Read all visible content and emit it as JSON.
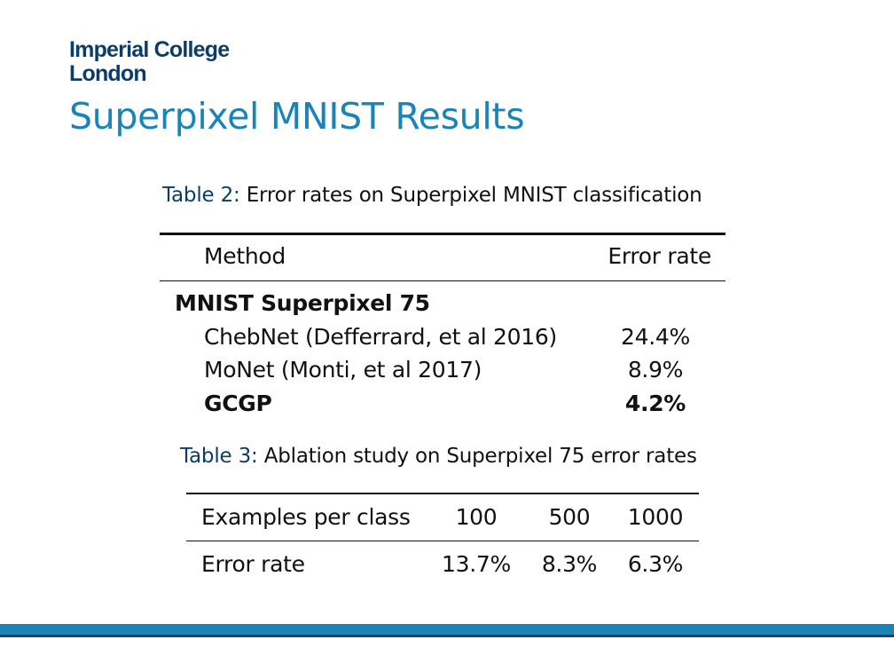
{
  "logo": {
    "line1": "Imperial College",
    "line2": "London"
  },
  "slide_title": "Superpixel MNIST Results",
  "table2": {
    "caption_label": "Table 2:",
    "caption_text": "Error rates on Superpixel MNIST classification",
    "headers": {
      "method": "Method",
      "error": "Error rate"
    },
    "group": "MNIST Superpixel 75",
    "rows": [
      {
        "method": "ChebNet (Defferrard, et al 2016)",
        "error": "24.4%"
      },
      {
        "method": "MoNet (Monti, et al 2017)",
        "error": "8.9%"
      },
      {
        "method": "GCGP",
        "error": "4.2%"
      }
    ]
  },
  "table3": {
    "caption_label": "Table 3:",
    "caption_text": "Ablation study on Superpixel 75 error rates",
    "header": {
      "label": "Examples per class",
      "values": [
        "100",
        "500",
        "1000"
      ]
    },
    "row": {
      "label": "Error rate",
      "values": [
        "13.7%",
        "8.3%",
        "6.3%"
      ]
    }
  },
  "colors": {
    "title": "#1a84b8",
    "logo": "#0b3d6b",
    "caption_label": "#0b3d6b",
    "footer_bar": "#1a84b8",
    "footer_line": "#0b3d6b"
  }
}
